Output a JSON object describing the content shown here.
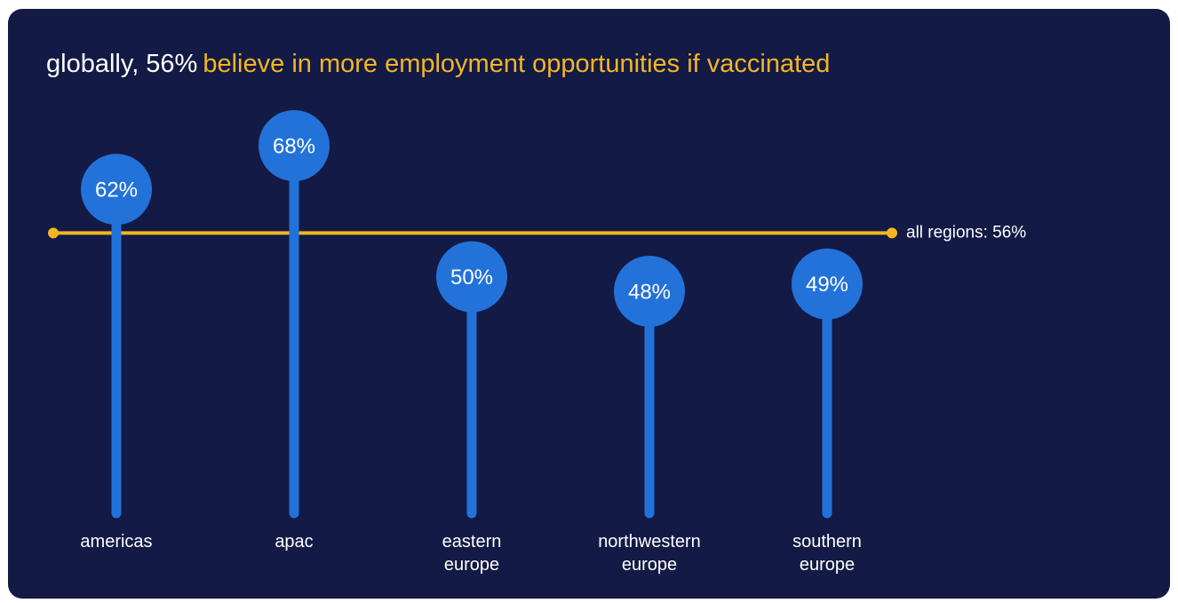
{
  "chart_data": {
    "type": "lollipop",
    "title": {
      "lead": "globally, 56%",
      "rest": "believe in more employment opportunities if vaccinated"
    },
    "categories": [
      "americas",
      "apac",
      "eastern europe",
      "northwestern europe",
      "southern europe"
    ],
    "values": [
      62,
      68,
      50,
      48,
      49
    ],
    "value_labels": [
      "62%",
      "68%",
      "50%",
      "48%",
      "49%"
    ],
    "color": "#2272d9",
    "reference_line": {
      "value": 56,
      "label": "all regions: 56%",
      "color": "#f5b523"
    }
  }
}
